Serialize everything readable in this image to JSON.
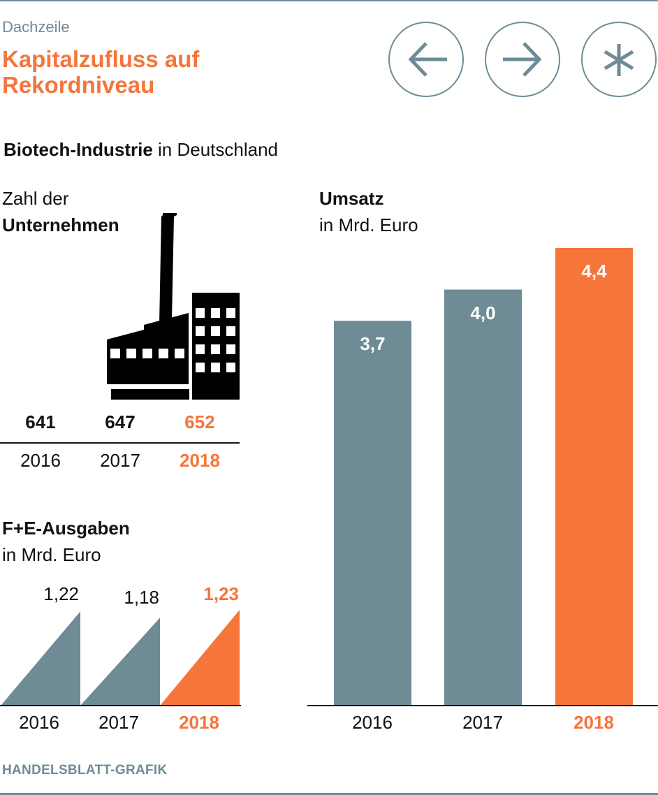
{
  "header": {
    "kicker": "Dachzeile",
    "title_line1": "Kapitalzufluss auf",
    "title_line2": "Rekordniveau",
    "buttons": [
      {
        "name": "previous",
        "icon": "arrow-left-icon"
      },
      {
        "name": "next",
        "icon": "arrow-right-icon"
      },
      {
        "name": "more",
        "icon": "asterisk-icon"
      }
    ]
  },
  "subtitle": {
    "bold": "Biotech-Industrie",
    "rest": " in Deutschland"
  },
  "colors": {
    "accent": "#f6753a",
    "gray": "#6e8b96",
    "text": "#111111"
  },
  "footer": "HANDELSBLATT-GRAFIK",
  "chart_data": [
    {
      "type": "table",
      "title_line1": "Zahl der",
      "title_line2": "Unternehmen",
      "icon": "factory-icon",
      "categories": [
        "2016",
        "2017",
        "2018"
      ],
      "values": [
        641,
        647,
        652
      ],
      "labels": [
        "641",
        "647",
        "652"
      ],
      "highlight": "2018"
    },
    {
      "type": "area",
      "title": "F+E-Ausgaben",
      "unit": "in Mrd. Euro",
      "categories": [
        "2016",
        "2017",
        "2018"
      ],
      "values": [
        1.22,
        1.18,
        1.23
      ],
      "labels": [
        "1,22",
        "1,18",
        "1,23"
      ],
      "highlight": "2018"
    },
    {
      "type": "bar",
      "title": "Umsatz",
      "unit": "in Mrd. Euro",
      "categories": [
        "2016",
        "2017",
        "2018"
      ],
      "values": [
        3.7,
        4.0,
        4.4
      ],
      "labels": [
        "3,7",
        "4,0",
        "4,4"
      ],
      "ylim": [
        0,
        4.4
      ],
      "highlight": "2018",
      "grid": false
    }
  ]
}
